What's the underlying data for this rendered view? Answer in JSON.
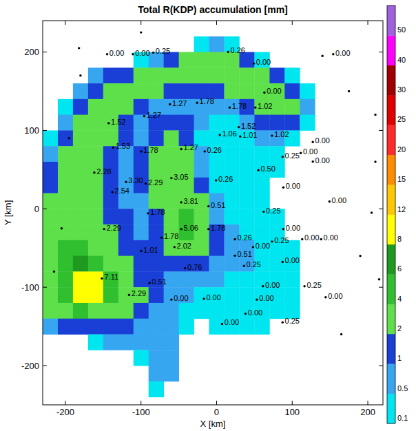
{
  "chart_data": {
    "type": "heatmap",
    "title": "Total R(KDP) accumulation [mm]",
    "x_label": "X [km]",
    "y_label": "Y [km]",
    "xlim": [
      -230,
      220
    ],
    "ylim": [
      -250,
      240
    ],
    "xticks": [
      -200,
      -100,
      0,
      100,
      200
    ],
    "yticks": [
      -200,
      -100,
      0,
      100,
      200
    ],
    "field": {
      "x": [
        -220,
        -200,
        -180,
        -160,
        -140,
        -120,
        -100,
        -80,
        -60,
        -40,
        -20,
        0,
        20,
        40,
        60,
        80,
        100,
        120
      ],
      "y": [
        210,
        190,
        170,
        150,
        130,
        110,
        90,
        70,
        50,
        30,
        10,
        -10,
        -30,
        -50,
        -70,
        -90,
        -110,
        -130,
        -150,
        -170,
        -190,
        -210,
        -230
      ],
      "values": [
        [
          null,
          null,
          null,
          null,
          null,
          null,
          null,
          null,
          null,
          null,
          0.3,
          0.5,
          0.3,
          null,
          null,
          null,
          null,
          null
        ],
        [
          null,
          null,
          null,
          null,
          null,
          null,
          0.3,
          0.8,
          1.5,
          2,
          2.5,
          3,
          2,
          1,
          0.3,
          null,
          null,
          null
        ],
        [
          null,
          null,
          null,
          0.5,
          1,
          1.5,
          2.5,
          3,
          3,
          2.5,
          2,
          2.5,
          3,
          2.5,
          2,
          1,
          0.3,
          null
        ],
        [
          null,
          null,
          0.5,
          1.5,
          2.5,
          3,
          2.5,
          2,
          1.5,
          1.2,
          1.5,
          1.5,
          2,
          3,
          2.5,
          2,
          1,
          0.3
        ],
        [
          null,
          0.3,
          1.5,
          2.5,
          3,
          2,
          1.2,
          0.8,
          0.8,
          0.6,
          0.5,
          0.5,
          0.8,
          1.5,
          2.5,
          3,
          2,
          0.5
        ],
        [
          null,
          0.8,
          2.5,
          3,
          2,
          1.2,
          0.8,
          1,
          1.5,
          1,
          0.5,
          0.3,
          0.3,
          0.5,
          1,
          1.5,
          1,
          0.2
        ],
        [
          0.3,
          1.5,
          3,
          3,
          2,
          1,
          0.8,
          1.5,
          2,
          1.5,
          0.3,
          0.2,
          0.3,
          0.3,
          0.5,
          0.5,
          0.3,
          null
        ],
        [
          0.8,
          2,
          3,
          2.5,
          1.5,
          0.8,
          1,
          2,
          2.5,
          2,
          0.5,
          0.2,
          0.2,
          0.2,
          0.3,
          0.2,
          null,
          null
        ],
        [
          1,
          2.5,
          3.5,
          3,
          1.5,
          0.8,
          1,
          2,
          3,
          2.5,
          0.8,
          0.3,
          0.2,
          0.2,
          0.2,
          0.1,
          null,
          null
        ],
        [
          1.5,
          3,
          3.5,
          3,
          1.5,
          0.8,
          1,
          2.5,
          3,
          3,
          1.5,
          0.3,
          0.2,
          0.2,
          0.2,
          null,
          null,
          null
        ],
        [
          2,
          3,
          3.5,
          2.5,
          1.5,
          0.8,
          0.8,
          2,
          3,
          3.5,
          2,
          0.5,
          0.3,
          0.2,
          0.2,
          null,
          null,
          null
        ],
        [
          2.5,
          3,
          3,
          2.5,
          1.5,
          1,
          0.8,
          1.5,
          3,
          4,
          2.5,
          0.8,
          0.3,
          0.3,
          0.2,
          0.2,
          null,
          null
        ],
        [
          3,
          3.5,
          3,
          2.5,
          2,
          1.2,
          0.8,
          1.5,
          3,
          4.5,
          2.5,
          1,
          0.5,
          0.3,
          0.3,
          0.2,
          null,
          null
        ],
        [
          3,
          4,
          4,
          3,
          2.5,
          1.5,
          1,
          1.5,
          2.5,
          3,
          2,
          1,
          0.5,
          0.5,
          0.3,
          0.3,
          0.2,
          null
        ],
        [
          3.5,
          4,
          6,
          5,
          3,
          2,
          1,
          1,
          1.5,
          1.5,
          1,
          0.8,
          0.5,
          0.5,
          0.3,
          0.3,
          0.2,
          null
        ],
        [
          3.5,
          5,
          8,
          9,
          5,
          3,
          1.5,
          1,
          0.8,
          0.8,
          0.5,
          0.5,
          0.3,
          0.3,
          0.3,
          0.2,
          0.2,
          null
        ],
        [
          3,
          4.5,
          8,
          8,
          5,
          3,
          2,
          1,
          0.5,
          0.5,
          0.3,
          0.3,
          0.3,
          0.3,
          0.3,
          0.2,
          0.2,
          null
        ],
        [
          2,
          3,
          4,
          3.5,
          3,
          2.5,
          1.5,
          0.8,
          0.5,
          0.3,
          0.2,
          0.2,
          0.2,
          0.3,
          0.2,
          0.2,
          0.1,
          null
        ],
        [
          0.5,
          1,
          1.5,
          1.5,
          1.5,
          1,
          0.8,
          0.8,
          0.5,
          0.2,
          null,
          0.1,
          0.2,
          0.2,
          0.2,
          null,
          null,
          null
        ],
        [
          null,
          null,
          null,
          0.3,
          0.5,
          0.5,
          0.5,
          0.8,
          0.5,
          null,
          null,
          null,
          null,
          null,
          null,
          null,
          null,
          null
        ],
        [
          null,
          null,
          null,
          null,
          null,
          null,
          0.3,
          0.8,
          0.5,
          null,
          null,
          null,
          null,
          null,
          null,
          null,
          null,
          null
        ],
        [
          null,
          null,
          null,
          null,
          null,
          null,
          null,
          0.5,
          0.5,
          null,
          null,
          null,
          null,
          null,
          null,
          null,
          null,
          null
        ],
        [
          null,
          null,
          null,
          null,
          null,
          null,
          null,
          0.3,
          null,
          null,
          null,
          null,
          null,
          null,
          null,
          null,
          null,
          null
        ]
      ]
    },
    "colorbar": {
      "ticks": [
        0.1,
        0.5,
        1,
        2,
        4,
        6,
        8,
        12,
        15,
        20,
        25,
        30,
        40,
        50
      ],
      "colors": [
        "#00e6f0",
        "#36a6f0",
        "#1a3fd6",
        "#5ee04a",
        "#2fbf2f",
        "#1e9a1e",
        "#ffff00",
        "#ffc800",
        "#ff8c00",
        "#ff2a2a",
        "#e00000",
        "#a00000",
        "#ff00ff",
        "#a060e0"
      ]
    },
    "gauges": {
      "x": [
        -132,
        -98,
        -71,
        28,
        62,
        167,
        -49,
        -13,
        30,
        64,
        76,
        -130,
        -83,
        42,
        17,
        44,
        86,
        140,
        124,
        100,
        140,
        -124,
        -87,
        -34,
        -3,
        -149,
        -107,
        -81,
        -47,
        12,
        68,
        -125,
        101,
        -34,
        2,
        75,
        162,
        -78,
        -136,
        -34,
        2,
        101,
        -60,
        -43,
        37,
        61,
        86,
        126,
        151,
        -87,
        37,
        -29,
        49,
        100,
        -139,
        -76,
        -103,
        -47,
        -4,
        74,
        129,
        157,
        66,
        51,
        20,
        100
      ],
      "y": [
        199,
        199,
        201,
        202,
        187,
        199,
        135,
        137,
        131,
        131,
        150,
        111,
        120,
        106,
        96,
        94,
        95,
        87,
        73,
        68,
        62,
        80,
        75,
        78,
        75,
        48,
        36,
        34,
        41,
        38,
        51,
        23,
        29,
        10,
        5,
        -2,
        11,
        -4,
        -24,
        -24,
        -24,
        -24,
        -35,
        -47,
        -37,
        -47,
        -40,
        -37,
        -37,
        -52,
        -58,
        -74,
        -71,
        -66,
        -87,
        -93,
        -108,
        -114,
        -113,
        -97,
        -97,
        -111,
        -114,
        -132,
        -145,
        -143
      ],
      "labels": [
        "0.00",
        "0.00",
        "0.25",
        "0.26",
        "0.00",
        "0.00",
        "1.27",
        "1.78",
        "1.78",
        "1.02",
        "0.00",
        "1.52",
        "1.27",
        "1.52",
        "1.06",
        "1.01",
        "1.02",
        "0.00",
        "0.00",
        "0.25",
        "0.00",
        "1.53",
        "1.78",
        "1.27",
        "0.26",
        "2.28",
        "3.30",
        "2.29",
        "3.05",
        "0.26",
        "0.50",
        "2.54",
        "0.00",
        "3.81",
        "0.51",
        "0.25",
        "0.00",
        "1.78",
        "2.29",
        "5.06",
        "1.78",
        "0.00",
        "1.78",
        "2.02",
        "0.26",
        "0.00",
        "0.25",
        "0.00",
        "0.00",
        "1.01",
        "0.51",
        "0.76",
        "0.25",
        "0.00",
        "7.11",
        "0.51",
        "2.29",
        "0.00",
        "0.00",
        "0.00",
        "0.25",
        "0.00",
        "0.00",
        "0.00",
        "0.00",
        "0.25"
      ]
    },
    "stations": {
      "x": [
        -182,
        -100,
        140,
        175,
        210,
        210,
        205,
        190,
        215,
        165,
        -195,
        -205,
        -215,
        -180
      ],
      "y": [
        205,
        225,
        195,
        150,
        120,
        60,
        -5,
        -60,
        -90,
        -160,
        90,
        -25,
        -80,
        170
      ]
    }
  }
}
